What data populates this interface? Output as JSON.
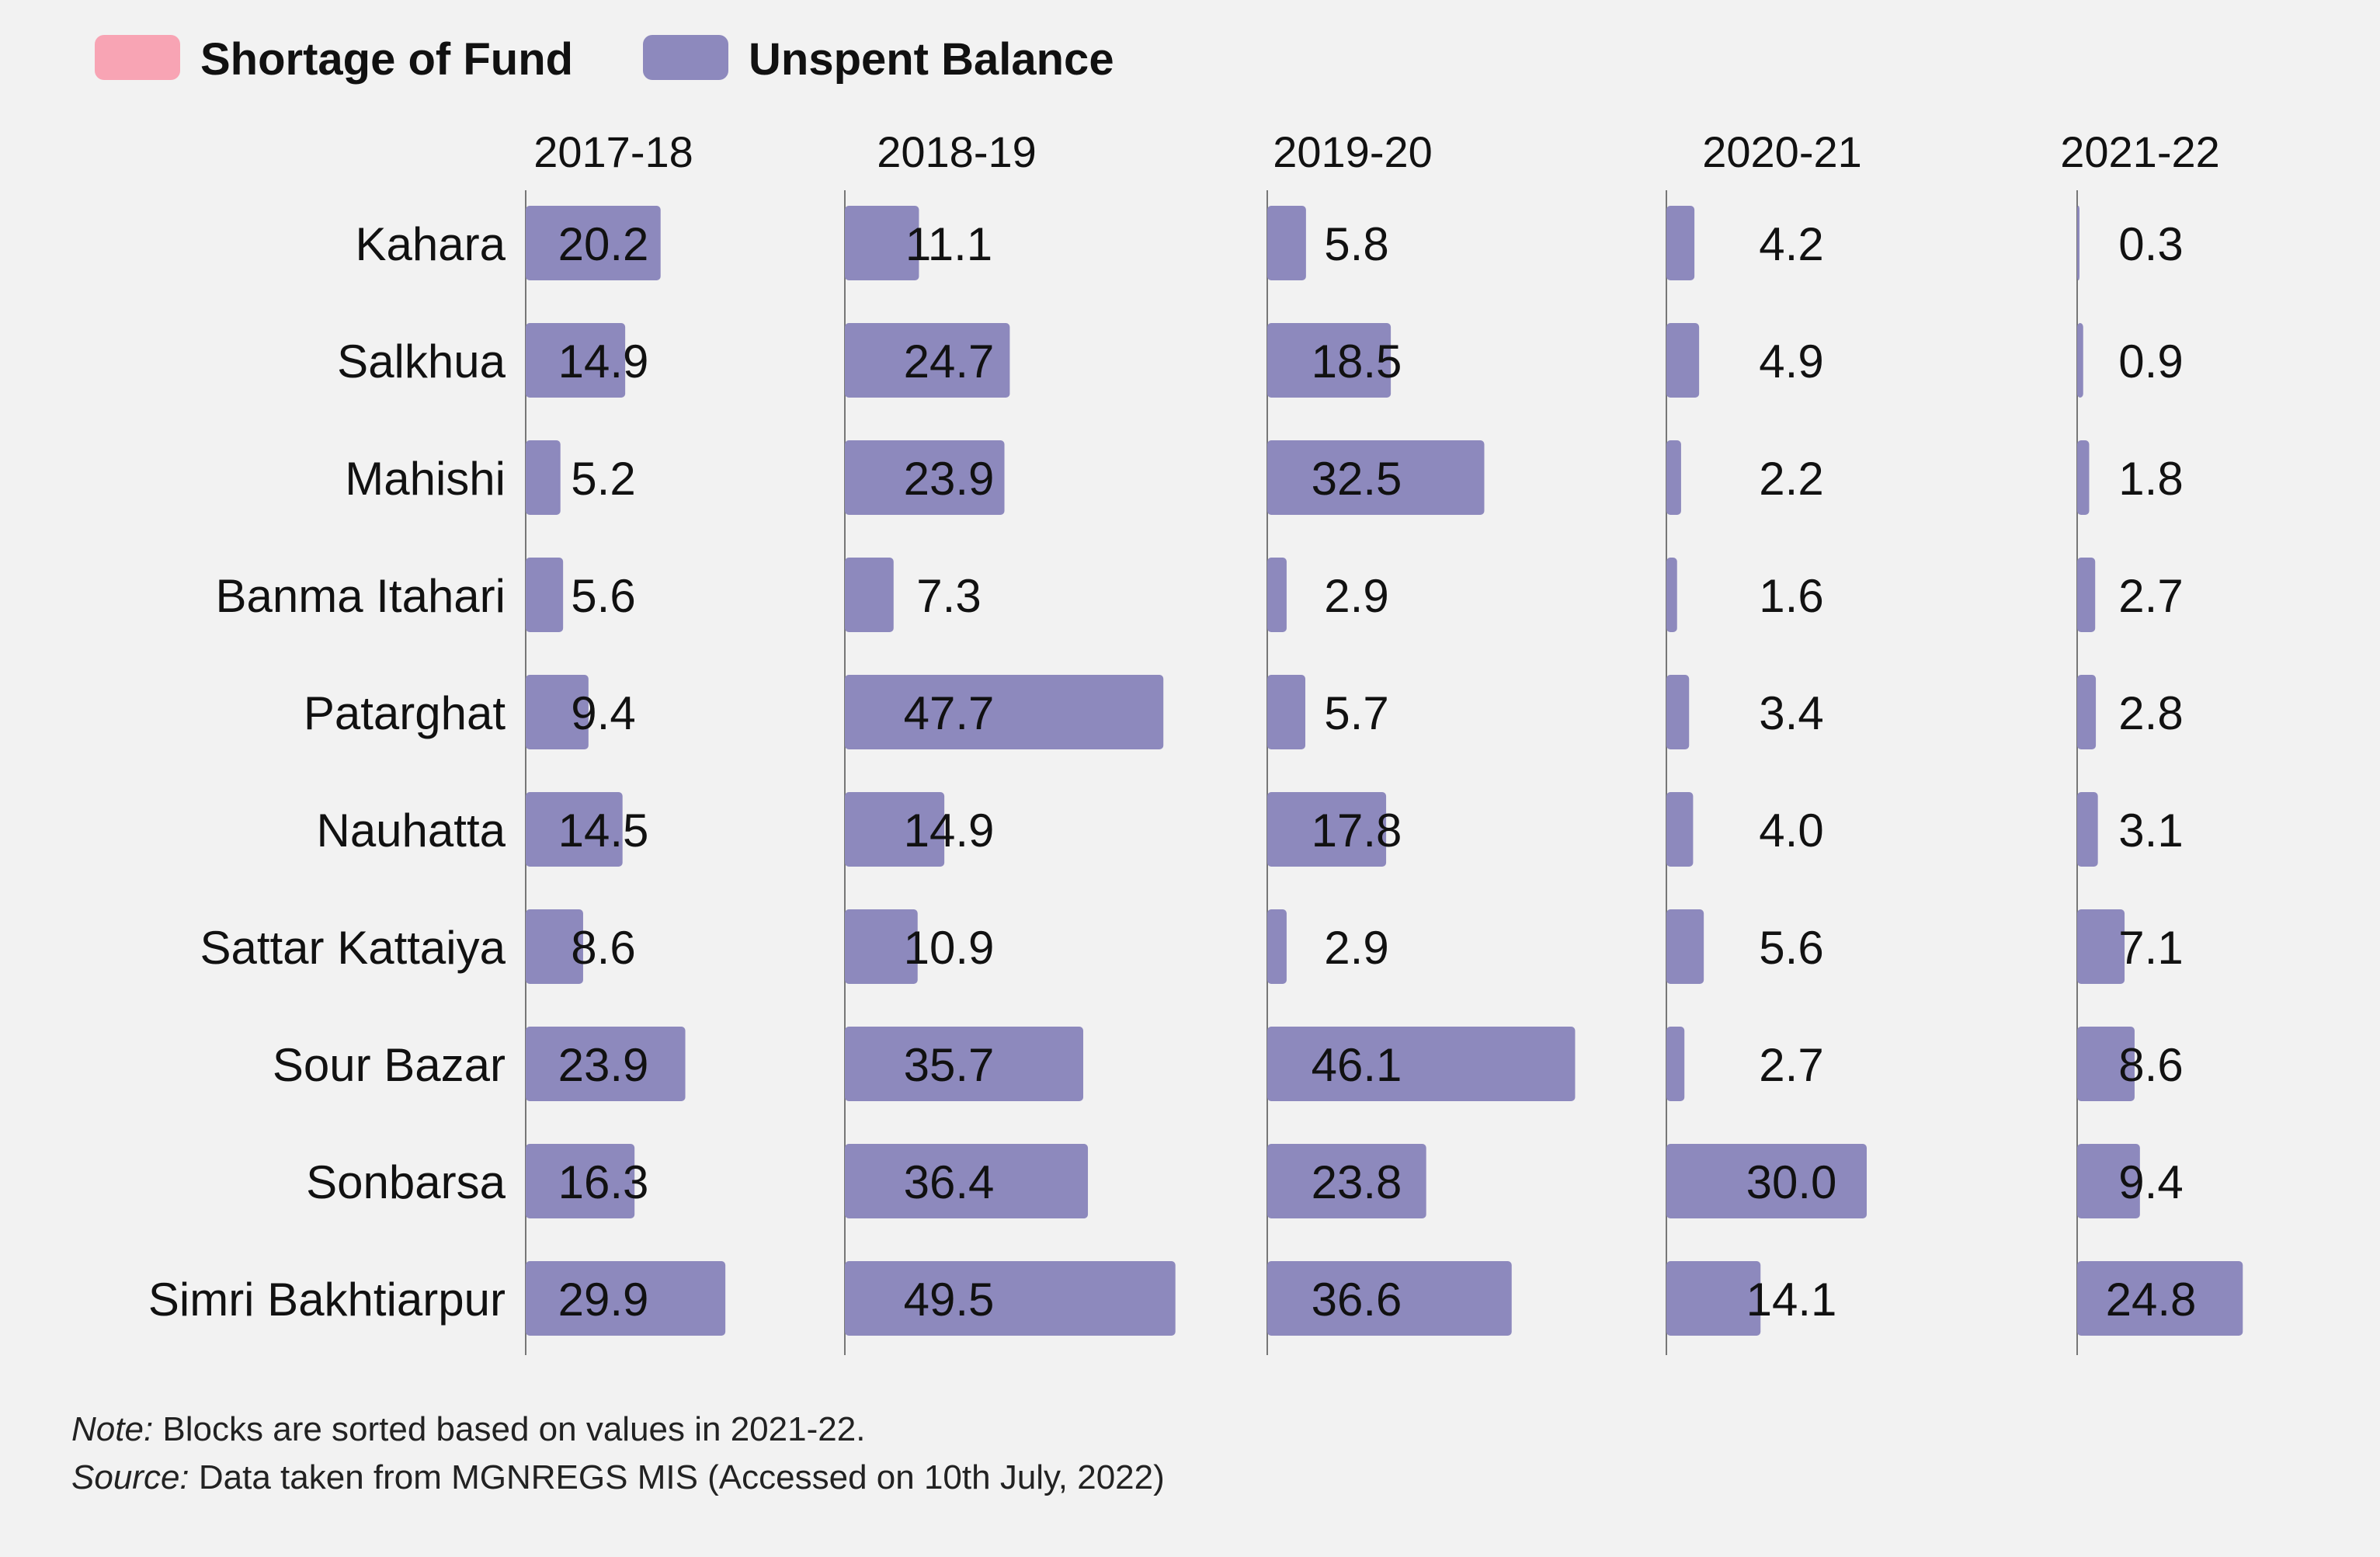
{
  "chart_data": {
    "type": "bar",
    "orientation": "horizontal",
    "legend": [
      {
        "name": "Shortage of Fund",
        "color": "#f8a4b4"
      },
      {
        "name": "Unspent Balance",
        "color": "#8d89bd"
      }
    ],
    "legend_placement": "top-left",
    "categories": [
      "Kahara",
      "Salkhua",
      "Mahishi",
      "Banma Itahari",
      "Patarghat",
      "Nauhatta",
      "Sattar Kattaiya",
      "Sour Bazar",
      "Sonbarsa",
      "Simri Bakhtiarpur"
    ],
    "series": [
      {
        "name": "2017-18",
        "values": [
          20.2,
          14.9,
          5.2,
          5.6,
          9.4,
          14.5,
          8.6,
          23.9,
          16.3,
          29.9
        ],
        "labels": [
          "20.2",
          "14.9",
          "5.2",
          "5.6",
          "9.4",
          "14.5",
          "8.6",
          "23.9",
          "16.3",
          "29.9"
        ]
      },
      {
        "name": "2018-19",
        "values": [
          11.1,
          24.7,
          23.9,
          7.3,
          47.7,
          14.9,
          10.9,
          35.7,
          36.4,
          49.5
        ],
        "labels": [
          "11.1",
          "24.7",
          "23.9",
          "7.3",
          "47.7",
          "14.9",
          "10.9",
          "35.7",
          "36.4",
          "49.5"
        ]
      },
      {
        "name": "2019-20",
        "values": [
          5.8,
          18.5,
          32.5,
          2.9,
          5.7,
          17.8,
          2.9,
          46.1,
          23.8,
          36.6
        ],
        "labels": [
          "5.8",
          "18.5",
          "32.5",
          "2.9",
          "5.7",
          "17.8",
          "2.9",
          "46.1",
          "23.8",
          "36.6"
        ]
      },
      {
        "name": "2020-21",
        "values": [
          4.2,
          4.9,
          2.2,
          1.6,
          3.4,
          4.0,
          5.6,
          2.7,
          30.0,
          14.1
        ],
        "labels": [
          "4.2",
          "4.9",
          "2.2",
          "1.6",
          "3.4",
          "4.0",
          "5.6",
          "2.7",
          "30.0",
          "14.1"
        ]
      },
      {
        "name": "2021-22",
        "values": [
          0.3,
          0.9,
          1.8,
          2.7,
          2.8,
          3.1,
          7.1,
          8.6,
          9.4,
          24.8
        ],
        "labels": [
          "0.3",
          "0.9",
          "1.8",
          "2.7",
          "2.8",
          "3.1",
          "7.1",
          "8.6",
          "9.4",
          "24.8"
        ]
      }
    ],
    "bar_color": "#8d89bd",
    "notes": {
      "note_lead": "Note:",
      "note_text": "Blocks are sorted based on values in 2021-22.",
      "source_lead": "Source:",
      "source_text": "Data taken from MGNREGS MIS (Accessed on 10th July, 2022)"
    }
  }
}
